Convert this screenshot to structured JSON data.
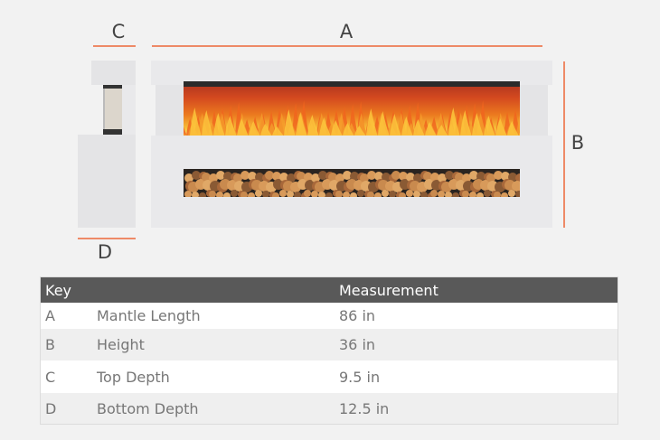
{
  "diagram": {
    "labels": {
      "a": "A",
      "b": "B",
      "c": "C",
      "d": "D"
    },
    "accent_color": "#ee8a67"
  },
  "table": {
    "headers": [
      "Key",
      "",
      "Measurement"
    ],
    "rows": [
      {
        "key": "A",
        "name": "Mantle Length",
        "value": "86 in"
      },
      {
        "key": "B",
        "name": "Height",
        "value": "36 in"
      },
      {
        "key": "C",
        "name": "Top Depth",
        "value": "9.5 in"
      },
      {
        "key": "D",
        "name": "Bottom Depth",
        "value": "12.5 in"
      }
    ]
  }
}
